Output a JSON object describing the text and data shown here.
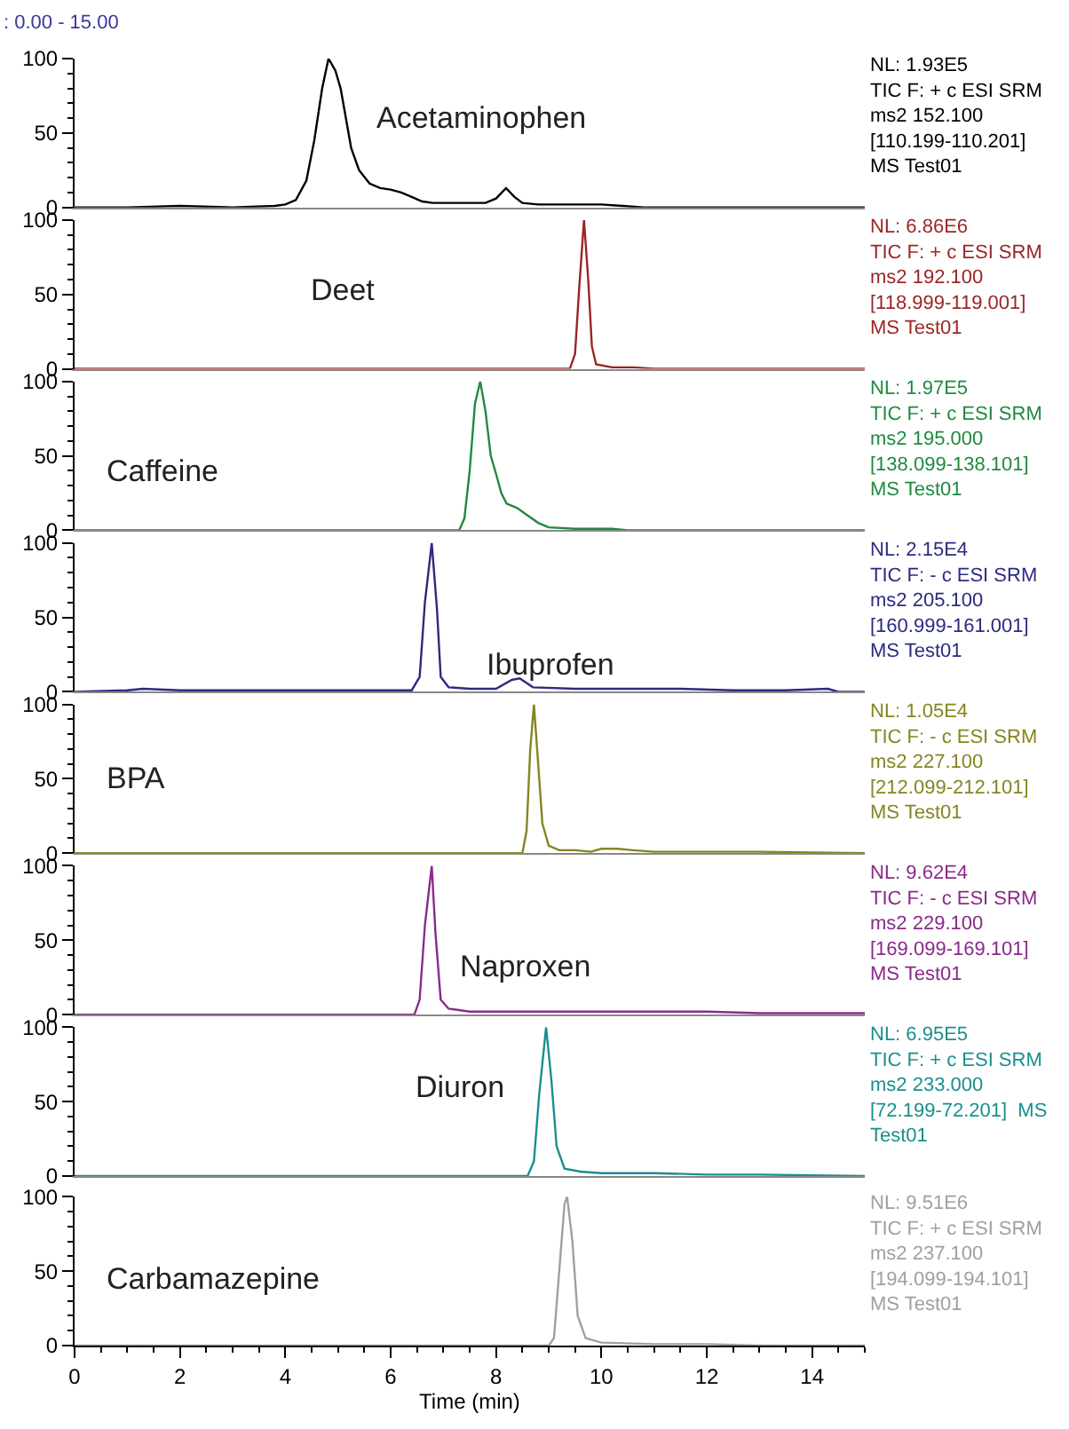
{
  "chart_data": [
    {
      "type": "line",
      "xlim": [
        0,
        15
      ],
      "ylim": [
        0,
        100
      ],
      "yticks": [
        0,
        50,
        100
      ],
      "tick_labels": "y",
      "annotations": [
        ": 0.00 - 15.00",
        "NL: 1.93E5\nTIC F: + c ESI SRM\nms2 152.100\n[110.199-110.201]\nMS Test01"
      ],
      "series": [
        {
          "name": "Acetaminophen",
          "color": "#000000",
          "x": [
            0,
            1,
            2,
            3,
            3.8,
            4.0,
            4.2,
            4.4,
            4.55,
            4.7,
            4.82,
            4.95,
            5.05,
            5.15,
            5.25,
            5.4,
            5.6,
            5.8,
            6.0,
            6.2,
            6.4,
            6.6,
            6.8,
            7.0,
            7.4,
            7.8,
            8.0,
            8.19,
            8.35,
            8.5,
            8.8,
            9.3,
            10.0,
            10.4,
            10.8,
            12,
            14,
            15
          ],
          "values": [
            0,
            0,
            1,
            0,
            1,
            2,
            5,
            18,
            45,
            80,
            100,
            92,
            80,
            60,
            40,
            25,
            16,
            13,
            12,
            10,
            7,
            4,
            3,
            3,
            3,
            3,
            6,
            13,
            7,
            3,
            2,
            2,
            2,
            1,
            0,
            0,
            0,
            0
          ]
        }
      ]
    },
    {
      "type": "line",
      "xlim": [
        0,
        15
      ],
      "ylim": [
        0,
        100
      ],
      "yticks": [
        0,
        50,
        100
      ],
      "tick_labels": "y",
      "annotations": [
        "NL: 6.86E6\nTIC F: + c ESI SRM\nms2 192.100\n[118.999-119.001]\nMS Test01"
      ],
      "series": [
        {
          "name": "Deet",
          "color": "#9b2525",
          "x": [
            0,
            9.0,
            9.4,
            9.5,
            9.58,
            9.67,
            9.75,
            9.82,
            9.9,
            10.2,
            10.6,
            11,
            15
          ],
          "values": [
            0,
            0,
            0,
            10,
            55,
            100,
            60,
            15,
            3,
            1,
            1,
            0,
            0
          ]
        }
      ]
    },
    {
      "type": "line",
      "xlim": [
        0,
        15
      ],
      "ylim": [
        0,
        100
      ],
      "yticks": [
        0,
        50,
        100
      ],
      "tick_labels": "y",
      "annotations": [
        "NL: 1.97E5\nTIC F: + c ESI SRM\nms2 195.000\n[138.099-138.101]\nMS Test01"
      ],
      "series": [
        {
          "name": "Caffeine",
          "color": "#1f8a40",
          "x": [
            0,
            7.3,
            7.4,
            7.5,
            7.6,
            7.7,
            7.8,
            7.9,
            8.0,
            8.1,
            8.2,
            8.4,
            8.6,
            8.8,
            9.0,
            9.5,
            10.2,
            10.5,
            15
          ],
          "values": [
            0,
            0,
            8,
            40,
            85,
            100,
            80,
            50,
            38,
            25,
            18,
            15,
            10,
            5,
            2,
            1,
            1,
            0,
            0
          ]
        }
      ]
    },
    {
      "type": "line",
      "xlim": [
        0,
        15
      ],
      "ylim": [
        0,
        100
      ],
      "yticks": [
        0,
        50,
        100
      ],
      "tick_labels": "y",
      "annotations": [
        "NL: 2.15E4\nTIC F: - c ESI SRM\nms2 205.100\n[160.999-161.001]\nMS Test01"
      ],
      "series": [
        {
          "name": "Ibuprofen",
          "color": "#2b2b80",
          "x": [
            0,
            1,
            1.3,
            2,
            3,
            4,
            5,
            6,
            6.4,
            6.55,
            6.65,
            6.78,
            6.88,
            6.95,
            7.1,
            7.5,
            8.0,
            8.3,
            8.45,
            8.7,
            9.5,
            10.5,
            11.5,
            12.5,
            13.5,
            14.3,
            14.5,
            15
          ],
          "values": [
            0,
            1,
            2,
            1,
            1,
            1,
            1,
            1,
            1,
            10,
            60,
            100,
            55,
            10,
            3,
            2,
            2,
            8,
            9,
            3,
            2,
            2,
            2,
            1,
            1,
            2,
            0,
            0
          ]
        }
      ]
    },
    {
      "type": "line",
      "xlim": [
        0,
        15
      ],
      "ylim": [
        0,
        100
      ],
      "yticks": [
        0,
        50,
        100
      ],
      "tick_labels": "y",
      "annotations": [
        "NL: 1.05E4\nTIC F: - c ESI SRM\nms2 227.100\n[212.099-212.101]\nMS Test01"
      ],
      "series": [
        {
          "name": "BPA",
          "color": "#858522",
          "x": [
            0,
            8.5,
            8.58,
            8.65,
            8.72,
            8.8,
            8.88,
            9.0,
            9.2,
            9.5,
            9.8,
            10.0,
            10.3,
            10.6,
            11,
            12,
            13,
            15
          ],
          "values": [
            0,
            0,
            15,
            70,
            100,
            60,
            20,
            5,
            2,
            2,
            1,
            3,
            3,
            2,
            1,
            1,
            1,
            0
          ]
        }
      ]
    },
    {
      "type": "line",
      "xlim": [
        0,
        15
      ],
      "ylim": [
        0,
        100
      ],
      "yticks": [
        0,
        50,
        100
      ],
      "tick_labels": "y",
      "annotations": [
        "NL: 9.62E4\nTIC F: - c ESI SRM\nms2 229.100\n[169.099-169.101]\nMS Test01"
      ],
      "series": [
        {
          "name": "Naproxen",
          "color": "#8a2a8a",
          "x": [
            0,
            6.45,
            6.55,
            6.65,
            6.78,
            6.85,
            6.95,
            7.1,
            7.5,
            8,
            9,
            10,
            11,
            12,
            13,
            14,
            15
          ],
          "values": [
            0,
            0,
            10,
            60,
            100,
            55,
            10,
            4,
            2,
            2,
            2,
            2,
            2,
            2,
            1,
            1,
            1
          ]
        }
      ]
    },
    {
      "type": "line",
      "xlim": [
        0,
        15
      ],
      "ylim": [
        0,
        100
      ],
      "yticks": [
        0,
        50,
        100
      ],
      "tick_labels": "y",
      "annotations": [
        "NL: 6.95E5\nTIC F: + c ESI SRM\nms2 233.000\n[72.199-72.201]  MS\nTest01"
      ],
      "series": [
        {
          "name": "Diuron",
          "color": "#1a8f8f",
          "x": [
            0,
            8.6,
            8.72,
            8.82,
            8.95,
            9.05,
            9.15,
            9.3,
            9.6,
            10,
            10.5,
            11,
            12,
            13,
            15
          ],
          "values": [
            0,
            0,
            10,
            55,
            100,
            65,
            20,
            5,
            3,
            2,
            2,
            2,
            1,
            1,
            0
          ]
        }
      ]
    },
    {
      "type": "line",
      "xlim": [
        0,
        15
      ],
      "ylim": [
        0,
        100
      ],
      "yticks": [
        0,
        50,
        100
      ],
      "xticks": [
        0,
        2,
        4,
        6,
        8,
        10,
        12,
        14
      ],
      "xlabel": "Time (min)",
      "annotations": [
        "NL: 9.51E6\nTIC F: + c ESI SRM\nms2 237.100\n[194.099-194.101]\nMS Test01"
      ],
      "series": [
        {
          "name": "Carbamazepine",
          "color": "#a0a0a0",
          "x": [
            0,
            9.0,
            9.1,
            9.2,
            9.3,
            9.35,
            9.45,
            9.55,
            9.7,
            10,
            11,
            12,
            13,
            15
          ],
          "values": [
            0,
            0,
            5,
            50,
            95,
            100,
            70,
            20,
            5,
            2,
            1,
            1,
            0,
            0
          ]
        }
      ]
    }
  ]
}
